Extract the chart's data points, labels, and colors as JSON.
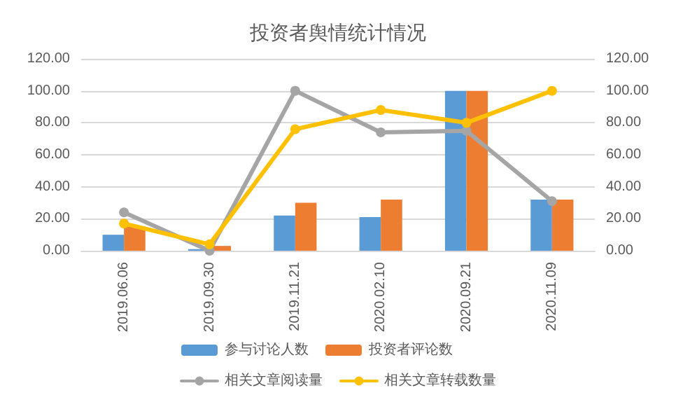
{
  "chart_data": {
    "type": "bar",
    "title": "投资者舆情统计情况",
    "categories": [
      "2019.06.06",
      "2019.09.30",
      "2019.11.21",
      "2020.02.10",
      "2020.09.21",
      "2020.11.09"
    ],
    "series": [
      {
        "name": "参与讨论人数",
        "color": "#5b9bd5",
        "values": [
          10,
          1,
          22,
          21,
          100,
          32
        ]
      },
      {
        "name": "投资者评论数",
        "color": "#ed7d31",
        "values": [
          15,
          3,
          30,
          32,
          100,
          32
        ]
      },
      {
        "name": "相关文章阅读量",
        "type": "line",
        "axis": "y2",
        "color": "#a5a5a5",
        "values": [
          24,
          0,
          100,
          74,
          75,
          31
        ]
      },
      {
        "name": "相关文章转载数量",
        "type": "line",
        "axis": "y2",
        "color": "#ffc000",
        "values": [
          17,
          4,
          76,
          88,
          80,
          100
        ]
      }
    ],
    "ylim": [
      0,
      120
    ],
    "yticks": [
      {
        "value": 0,
        "label": "0.00"
      },
      {
        "value": 20,
        "label": "20.00"
      },
      {
        "value": 40,
        "label": "40.00"
      },
      {
        "value": 60,
        "label": "60.00"
      },
      {
        "value": 80,
        "label": "80.00"
      },
      {
        "value": 100,
        "label": "100.00"
      },
      {
        "value": 120,
        "label": "120.00"
      }
    ],
    "y2lim": [
      0,
      120
    ],
    "y2ticks": [
      {
        "value": 0,
        "label": "0.00"
      },
      {
        "value": 20,
        "label": "20.00"
      },
      {
        "value": 40,
        "label": "40.00"
      },
      {
        "value": 60,
        "label": "60.00"
      },
      {
        "value": 80,
        "label": "80.00"
      },
      {
        "value": 100,
        "label": "100.00"
      },
      {
        "value": 120,
        "label": "120.00"
      }
    ],
    "grid": "y",
    "legend": "bottom",
    "marker": "circle",
    "line_style": "solid"
  }
}
